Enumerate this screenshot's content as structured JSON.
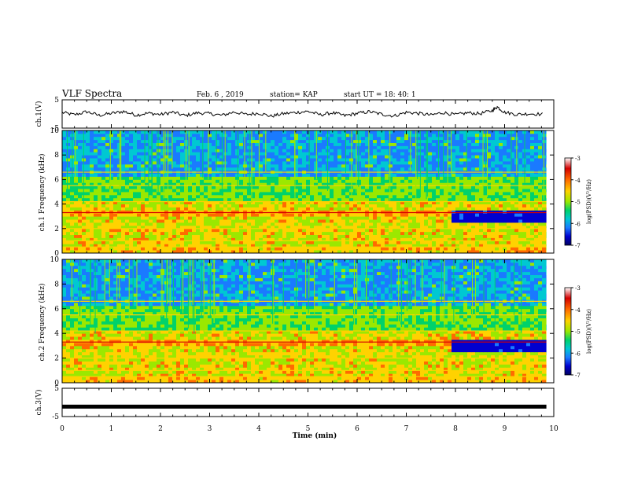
{
  "header": {
    "title": "VLF Spectra",
    "date": "Feb. 6  , 2019",
    "station": "station= KAP",
    "start_ut": "start  UT  =   18: 40: 1"
  },
  "colorbar": {
    "label": "log(PSD)(V²/Hz)",
    "ticks": [
      "-3",
      "-4",
      "-5",
      "-6",
      "-7"
    ],
    "colors": [
      "#ffffff",
      "#d40000",
      "#ff6a00",
      "#ffd200",
      "#9be800",
      "#00d26a",
      "#00c8d2",
      "#1a7aff",
      "#0000d0",
      "#000060"
    ]
  },
  "chart_data": [
    {
      "type": "line",
      "panel": "ch1",
      "ylabel": "ch.1(V)",
      "ylim": [
        -5,
        5
      ],
      "yticks": [
        "5",
        "-5"
      ],
      "xlim": [
        0,
        10
      ],
      "series": [
        {
          "x": [
            0,
            0.25,
            0.5,
            0.75,
            1.0,
            1.25,
            1.5,
            1.75,
            2.0,
            2.25,
            2.5,
            2.75,
            3.0,
            3.25,
            3.5,
            3.75,
            4.0,
            4.25,
            4.5,
            4.75,
            5.0,
            5.25,
            5.5,
            5.75,
            6.0,
            6.25,
            6.5,
            6.75,
            7.0,
            7.25,
            7.5,
            7.75,
            8.0,
            8.25,
            8.5,
            8.75,
            8.85,
            9.0,
            9.25,
            9.5,
            9.8
          ],
          "y": [
            0.5,
            -0.3,
            0.8,
            -0.5,
            0.2,
            0.9,
            -0.4,
            0.3,
            -0.2,
            0.6,
            -0.6,
            0.4,
            0.1,
            -0.5,
            0.7,
            -0.2,
            0.3,
            -0.8,
            0.1,
            0.5,
            0.9,
            -0.3,
            0.4,
            -0.6,
            0.2,
            0.8,
            -0.1,
            -0.7,
            0.6,
            0.2,
            -0.4,
            0.5,
            -0.3,
            0.4,
            0.1,
            1.2,
            2.5,
            0.6,
            -0.2,
            0.1,
            -0.1
          ]
        }
      ]
    },
    {
      "type": "heatmap",
      "panel": "ch1_spectrogram",
      "ylabel": "ch.1 Frequency (kHz)",
      "ylim": [
        0,
        10
      ],
      "yticks": [
        "0",
        "2",
        "4",
        "6",
        "8",
        "10"
      ],
      "xlim": [
        0,
        10
      ],
      "zlim": [
        -7,
        -3
      ],
      "zlabel": "log(PSD)(V²/Hz)"
    },
    {
      "type": "heatmap",
      "panel": "ch2_spectrogram",
      "ylabel": "ch.2 Frequency (kHz)",
      "ylim": [
        0,
        10
      ],
      "yticks": [
        "0",
        "2",
        "4",
        "6",
        "8",
        "10"
      ],
      "xlim": [
        0,
        10
      ],
      "zlim": [
        -7,
        -3
      ],
      "zlabel": "log(PSD)(V²/Hz)"
    },
    {
      "type": "line",
      "panel": "ch3",
      "ylabel": "ch.3(V)",
      "ylim": [
        -5,
        5
      ],
      "yticks": [
        "5",
        "-5"
      ],
      "xlim": [
        0,
        10
      ],
      "series": [
        {
          "x": [
            0,
            9.85
          ],
          "y": [
            -1.5,
            -1.5
          ]
        }
      ]
    }
  ],
  "xaxis": {
    "label": "Time  (min)",
    "ticks": [
      "0",
      "1",
      "2",
      "3",
      "4",
      "5",
      "6",
      "7",
      "8",
      "9",
      "10"
    ]
  }
}
